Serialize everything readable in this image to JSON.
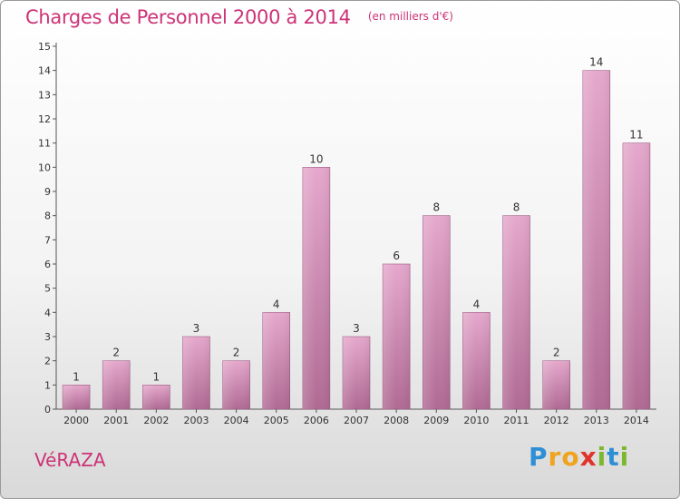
{
  "chart_data": {
    "type": "bar",
    "title": "Charges de Personnel 2000 à 2014",
    "subtitle": "(en milliers d'€)",
    "categories": [
      "2000",
      "2001",
      "2002",
      "2003",
      "2004",
      "2005",
      "2006",
      "2007",
      "2008",
      "2009",
      "2010",
      "2011",
      "2012",
      "2013",
      "2014"
    ],
    "values": [
      1,
      2,
      1,
      3,
      2,
      4,
      10,
      3,
      6,
      8,
      4,
      8,
      2,
      14,
      11
    ],
    "ylim": [
      0,
      15
    ],
    "yticks": [
      0,
      1,
      2,
      3,
      4,
      5,
      6,
      7,
      8,
      9,
      10,
      11,
      12,
      13,
      14,
      15
    ],
    "grid": false,
    "bar_color_top": "#e5a8cc",
    "bar_color_bottom": "#b06a94"
  },
  "commune": "VéRAZA",
  "brand": {
    "letters": [
      "P",
      "r",
      "o",
      "x",
      "i",
      "t",
      "i"
    ],
    "colors": [
      "#2e8fd6",
      "#f0a31e",
      "#f0a31e",
      "#e0342b",
      "#7cb82f",
      "#2e8fd6",
      "#7cb82f"
    ]
  }
}
